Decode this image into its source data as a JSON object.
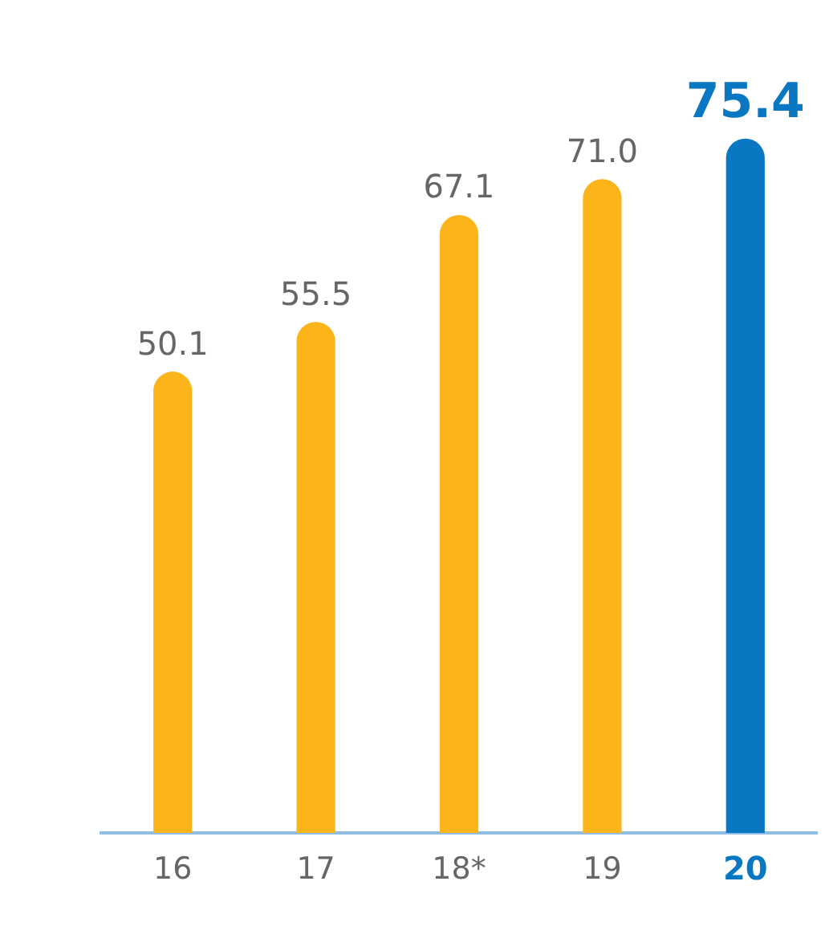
{
  "chart_data": {
    "type": "bar",
    "categories": [
      "16",
      "17",
      "18*",
      "19",
      "20"
    ],
    "values": [
      50.1,
      55.5,
      67.1,
      71.0,
      75.4
    ],
    "colors": [
      "#fbb41a",
      "#fbb41a",
      "#fbb41a",
      "#fbb41a",
      "#0a77c2"
    ],
    "value_labels": [
      "50.1",
      "55.5",
      "67.1",
      "71.0",
      "75.4"
    ],
    "grid": false,
    "legend": false,
    "tick_labels": "x"
  }
}
